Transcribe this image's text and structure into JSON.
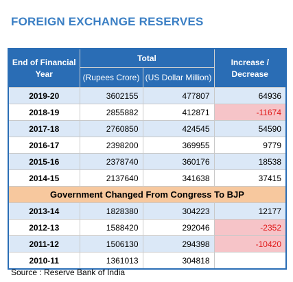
{
  "title": "FOREIGN EXCHANGE RESERVES",
  "headers": {
    "col1": "End of Financial Year",
    "total": "Total",
    "rupees": "(Rupees Crore)",
    "usd": "(US Dollar Million)",
    "change": "Increase / Decrease"
  },
  "rows_top": [
    {
      "year": "2019-20",
      "rupees": "3602155",
      "usd": "477807",
      "change": "64936"
    },
    {
      "year": "2018-19",
      "rupees": "2855882",
      "usd": "412871",
      "change": "-11674"
    },
    {
      "year": "2017-18",
      "rupees": "2760850",
      "usd": "424545",
      "change": "54590"
    },
    {
      "year": "2016-17",
      "rupees": "2398200",
      "usd": "369955",
      "change": "9779"
    },
    {
      "year": "2015-16",
      "rupees": "2378740",
      "usd": "360176",
      "change": "18538"
    },
    {
      "year": "2014-15",
      "rupees": "2137640",
      "usd": "341638",
      "change": "37415"
    }
  ],
  "banner": "Government Changed From Congress To BJP",
  "rows_bottom": [
    {
      "year": "2013-14",
      "rupees": "1828380",
      "usd": "304223",
      "change": "12177"
    },
    {
      "year": "2012-13",
      "rupees": "1588420",
      "usd": "292046",
      "change": "-2352"
    },
    {
      "year": "2011-12",
      "rupees": "1506130",
      "usd": "294398",
      "change": "-10420"
    },
    {
      "year": "2010-11",
      "rupees": "1361013",
      "usd": "304818",
      "change": ""
    }
  ],
  "source": "Source : Reserve Bank of India",
  "colors": {
    "header_bg": "#2a6db5",
    "title": "#3b7fc4",
    "row_blue": "#dbe8f7",
    "negative_bg": "#f6c4c8",
    "negative_text": "#e01b1b",
    "banner_bg": "#f7c89e"
  }
}
